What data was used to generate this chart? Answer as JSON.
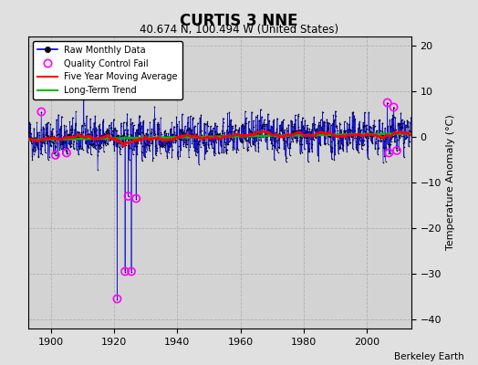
{
  "title": "CURTIS 3 NNE",
  "subtitle": "40.674 N, 100.494 W (United States)",
  "ylabel": "Temperature Anomaly (°C)",
  "credit": "Berkeley Earth",
  "xlim": [
    1893,
    2014
  ],
  "ylim": [
    -42,
    22
  ],
  "yticks": [
    -40,
    -30,
    -20,
    -10,
    0,
    10,
    20
  ],
  "xticks": [
    1900,
    1920,
    1940,
    1960,
    1980,
    2000
  ],
  "fig_bg_color": "#e0e0e0",
  "plot_bg_color": "#d3d3d3",
  "grid_color": "#b0b0b0",
  "raw_color": "#0000cc",
  "raw_dot_color": "#000000",
  "qc_color": "#ff00ff",
  "moving_avg_color": "#ff0000",
  "trend_color": "#00bb00",
  "seed": 42,
  "t_start": 1893,
  "t_end": 2013,
  "anomaly_std": 2.8,
  "trend_slope": 0.006,
  "moving_avg_window": 60,
  "main_outliers_t": [
    1921.0,
    1923.5,
    1924.5,
    1925.5,
    1927.0
  ],
  "main_outliers_v": [
    -35.5,
    -29.5,
    -13.0,
    -29.5,
    -13.5
  ],
  "early_qc_t": [
    1897.0,
    1901.5,
    1905.0
  ],
  "early_qc_v": [
    5.5,
    -4.0,
    -3.5
  ],
  "late_qc_t": [
    2006.5,
    2007.0,
    2008.5,
    2009.5
  ],
  "late_qc_v": [
    7.5,
    -3.5,
    6.5,
    -3.0
  ]
}
